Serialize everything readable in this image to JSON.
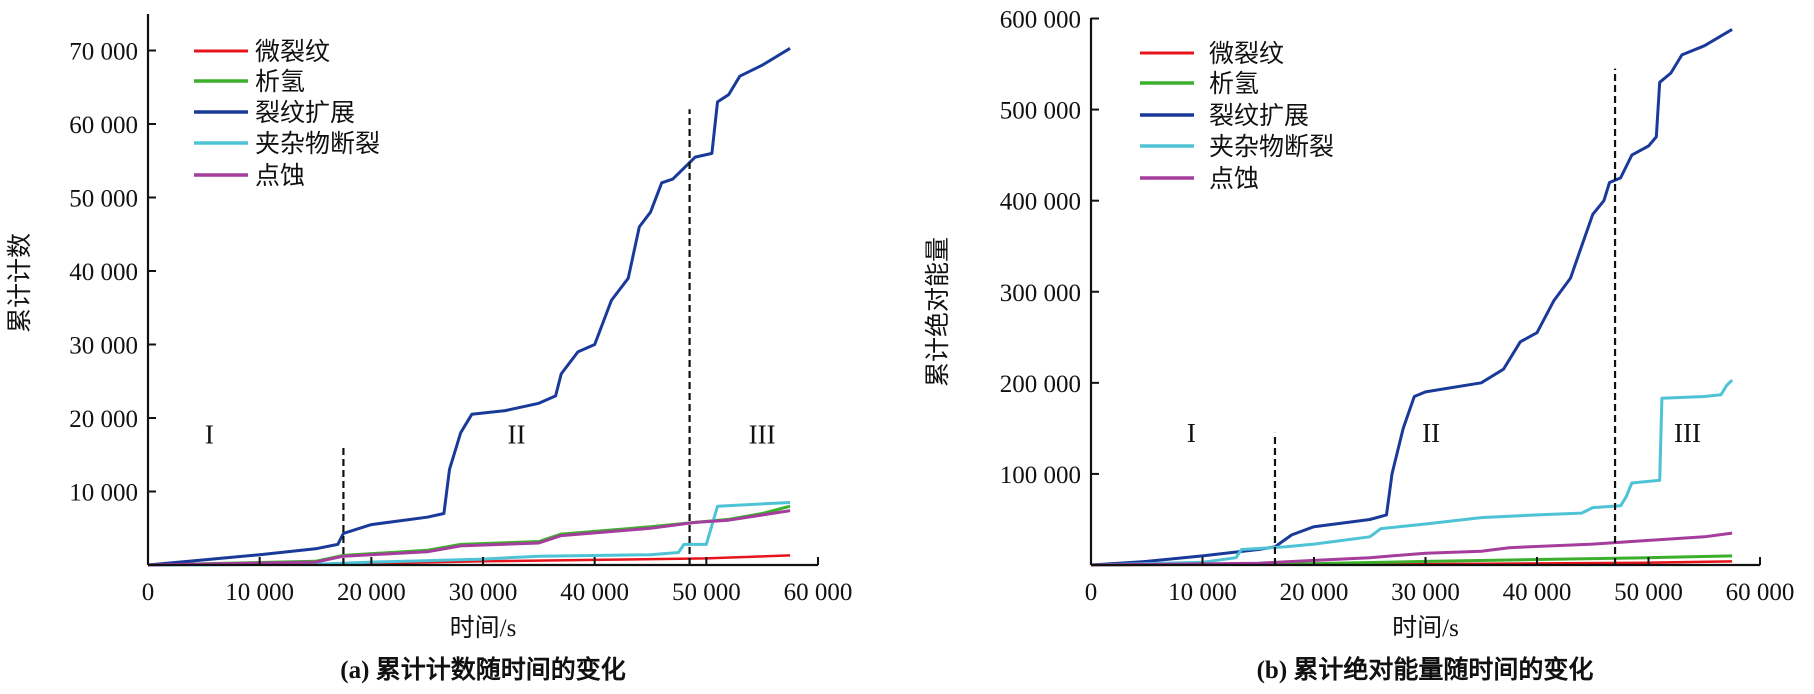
{
  "chart_data": [
    {
      "type": "line",
      "caption": "(a) 累计计数随时间的变化",
      "xlabel": "时间/s",
      "ylabel": "累计计数",
      "xlim": [
        0,
        60000
      ],
      "ylim": [
        0,
        74000
      ],
      "xticks": [
        0,
        10000,
        20000,
        30000,
        40000,
        50000,
        60000
      ],
      "xtick_labels": [
        "0",
        "10 000",
        "20 000",
        "30 000",
        "40 000",
        "50 000",
        "60 000"
      ],
      "yticks": [
        10000,
        20000,
        30000,
        40000,
        50000,
        60000,
        70000
      ],
      "ytick_labels": [
        "10 000",
        "20 000",
        "30 000",
        "40 000",
        "50 000",
        "60 000",
        "70 000"
      ],
      "legend_position": "top-left",
      "dividers": [
        {
          "x": 17500,
          "ytop": 16000
        },
        {
          "x": 48500,
          "ytop": 62000
        }
      ],
      "regions": [
        {
          "label": "I",
          "x": 5500,
          "y": 16500
        },
        {
          "label": "II",
          "x": 33000,
          "y": 16500
        },
        {
          "label": "III",
          "x": 55000,
          "y": 16500
        }
      ],
      "series": [
        {
          "name": "微裂纹",
          "color": "#e8141c",
          "width": 2.5,
          "points": [
            [
              0,
              0
            ],
            [
              10000,
              80
            ],
            [
              20000,
              200
            ],
            [
              30000,
              500
            ],
            [
              40000,
              700
            ],
            [
              50000,
              900
            ],
            [
              57500,
              1300
            ]
          ]
        },
        {
          "name": "析氢",
          "color": "#3cb02c",
          "width": 3,
          "points": [
            [
              0,
              0
            ],
            [
              15000,
              500
            ],
            [
              17500,
              1300
            ],
            [
              25000,
              2000
            ],
            [
              28000,
              2800
            ],
            [
              35000,
              3200
            ],
            [
              37000,
              4200
            ],
            [
              45000,
              5200
            ],
            [
              49000,
              5800
            ],
            [
              52000,
              6200
            ],
            [
              55000,
              7000
            ],
            [
              57500,
              8000
            ]
          ]
        },
        {
          "name": "裂纹扩展",
          "color": "#1a3a9a",
          "width": 3,
          "points": [
            [
              0,
              0
            ],
            [
              5000,
              700
            ],
            [
              10000,
              1400
            ],
            [
              15000,
              2200
            ],
            [
              17000,
              2800
            ],
            [
              17500,
              4300
            ],
            [
              20000,
              5500
            ],
            [
              25000,
              6500
            ],
            [
              26500,
              7000
            ],
            [
              27000,
              13000
            ],
            [
              28000,
              18000
            ],
            [
              29000,
              20500
            ],
            [
              32000,
              21000
            ],
            [
              35000,
              22000
            ],
            [
              36500,
              23000
            ],
            [
              37000,
              26000
            ],
            [
              38500,
              29000
            ],
            [
              40000,
              30000
            ],
            [
              41500,
              36000
            ],
            [
              43000,
              39000
            ],
            [
              44000,
              46000
            ],
            [
              45000,
              48000
            ],
            [
              46000,
              52000
            ],
            [
              47000,
              52500
            ],
            [
              48000,
              54000
            ],
            [
              49000,
              55500
            ],
            [
              50500,
              56000
            ],
            [
              51000,
              63000
            ],
            [
              52000,
              64000
            ],
            [
              53000,
              66500
            ],
            [
              55000,
              68000
            ],
            [
              57500,
              70300
            ]
          ]
        },
        {
          "name": "夹杂物断裂",
          "color": "#4fc3d6",
          "width": 3,
          "points": [
            [
              0,
              0
            ],
            [
              15000,
              100
            ],
            [
              20000,
              400
            ],
            [
              30000,
              800
            ],
            [
              35000,
              1200
            ],
            [
              45000,
              1400
            ],
            [
              47500,
              1700
            ],
            [
              48000,
              2800
            ],
            [
              50000,
              2800
            ],
            [
              51000,
              8000
            ],
            [
              57500,
              8500
            ]
          ]
        },
        {
          "name": "点蚀",
          "color": "#a43d9c",
          "width": 3,
          "points": [
            [
              0,
              0
            ],
            [
              15000,
              400
            ],
            [
              17500,
              1200
            ],
            [
              25000,
              1800
            ],
            [
              28000,
              2600
            ],
            [
              35000,
              3000
            ],
            [
              37000,
              4000
            ],
            [
              45000,
              5000
            ],
            [
              49000,
              5800
            ],
            [
              52000,
              6100
            ],
            [
              55000,
              6800
            ],
            [
              57500,
              7400
            ]
          ]
        }
      ]
    },
    {
      "type": "line",
      "caption": "(b) 累计绝对能量随时间的变化",
      "xlabel": "时间/s",
      "ylabel": "累计绝对能量",
      "xlim": [
        0,
        60000
      ],
      "ylim": [
        0,
        600000
      ],
      "xticks": [
        0,
        10000,
        20000,
        30000,
        40000,
        50000,
        60000
      ],
      "xtick_labels": [
        "0",
        "10 000",
        "20 000",
        "30 000",
        "40 000",
        "50 000",
        "60 000"
      ],
      "yticks": [
        100000,
        200000,
        300000,
        400000,
        500000,
        600000
      ],
      "ytick_labels": [
        "100 000",
        "200 000",
        "300 000",
        "400 000",
        "500 000",
        "600 000"
      ],
      "legend_position": "top-left",
      "dividers": [
        {
          "x": 16500,
          "ytop": 145000
        },
        {
          "x": 47000,
          "ytop": 545000
        }
      ],
      "regions": [
        {
          "label": "I",
          "x": 9000,
          "y": 135000
        },
        {
          "label": "II",
          "x": 30500,
          "y": 135000
        },
        {
          "label": "III",
          "x": 53500,
          "y": 135000
        }
      ],
      "series": [
        {
          "name": "微裂纹",
          "color": "#e8141c",
          "width": 2.5,
          "points": [
            [
              0,
              0
            ],
            [
              30000,
              1000
            ],
            [
              50000,
              2500
            ],
            [
              57500,
              4000
            ]
          ]
        },
        {
          "name": "析氢",
          "color": "#3cb02c",
          "width": 3,
          "points": [
            [
              0,
              0
            ],
            [
              20000,
              1500
            ],
            [
              30000,
              4000
            ],
            [
              40000,
              6000
            ],
            [
              50000,
              8000
            ],
            [
              57500,
              10000
            ]
          ]
        },
        {
          "name": "裂纹扩展",
          "color": "#1a3a9a",
          "width": 3,
          "points": [
            [
              0,
              0
            ],
            [
              5000,
              4000
            ],
            [
              10000,
              10000
            ],
            [
              15000,
              17000
            ],
            [
              16500,
              20000
            ],
            [
              18000,
              33000
            ],
            [
              20000,
              42000
            ],
            [
              25000,
              50000
            ],
            [
              26500,
              55000
            ],
            [
              27000,
              100000
            ],
            [
              28000,
              150000
            ],
            [
              29000,
              185000
            ],
            [
              30000,
              190000
            ],
            [
              35000,
              200000
            ],
            [
              37000,
              215000
            ],
            [
              38500,
              245000
            ],
            [
              40000,
              255000
            ],
            [
              41500,
              290000
            ],
            [
              43000,
              315000
            ],
            [
              44000,
              350000
            ],
            [
              45000,
              385000
            ],
            [
              46000,
              400000
            ],
            [
              46500,
              420000
            ],
            [
              47500,
              425000
            ],
            [
              48500,
              450000
            ],
            [
              50000,
              460000
            ],
            [
              50700,
              470000
            ],
            [
              51000,
              530000
            ],
            [
              52000,
              540000
            ],
            [
              53000,
              560000
            ],
            [
              55000,
              570000
            ],
            [
              57500,
              588000
            ]
          ]
        },
        {
          "name": "夹杂物断裂",
          "color": "#4fc3d6",
          "width": 3,
          "points": [
            [
              0,
              0
            ],
            [
              10000,
              3000
            ],
            [
              13000,
              8000
            ],
            [
              13500,
              17000
            ],
            [
              17500,
              20000
            ],
            [
              20000,
              23000
            ],
            [
              25000,
              31000
            ],
            [
              26000,
              40000
            ],
            [
              30000,
              45000
            ],
            [
              35000,
              52000
            ],
            [
              40000,
              55000
            ],
            [
              44000,
              57000
            ],
            [
              45000,
              63000
            ],
            [
              47500,
              65000
            ],
            [
              48000,
              75000
            ],
            [
              48500,
              90000
            ],
            [
              51000,
              93000
            ],
            [
              51200,
              183000
            ],
            [
              55000,
              185000
            ],
            [
              56500,
              187000
            ],
            [
              57000,
              197000
            ],
            [
              57500,
              203000
            ]
          ]
        },
        {
          "name": "点蚀",
          "color": "#a43d9c",
          "width": 3,
          "points": [
            [
              0,
              0
            ],
            [
              15000,
              2000
            ],
            [
              20000,
              5000
            ],
            [
              25000,
              8000
            ],
            [
              30000,
              13000
            ],
            [
              35000,
              15000
            ],
            [
              37500,
              19000
            ],
            [
              45000,
              23000
            ],
            [
              50000,
              27000
            ],
            [
              55000,
              31000
            ],
            [
              57500,
              35000
            ]
          ]
        }
      ]
    }
  ]
}
